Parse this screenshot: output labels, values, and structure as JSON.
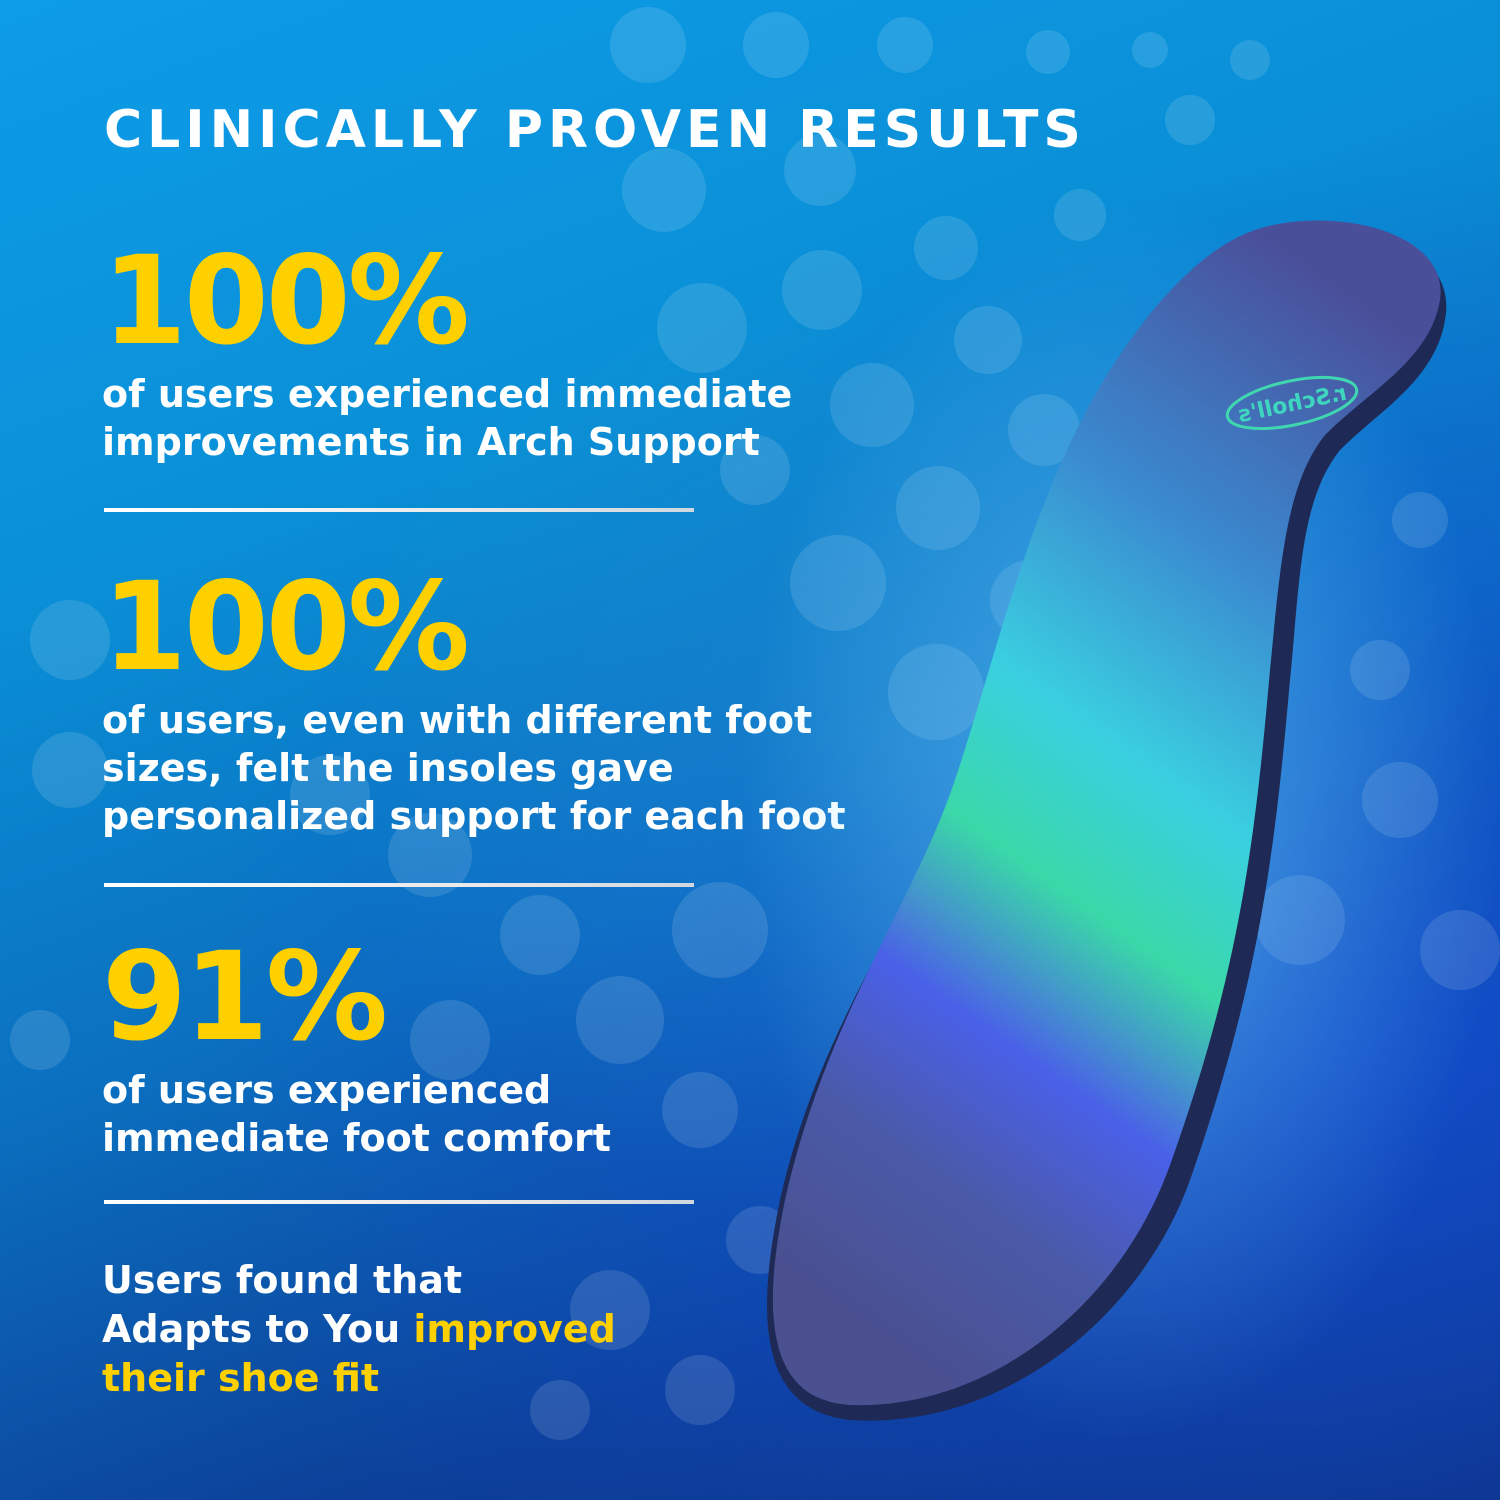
{
  "title": "CLINICALLY PROVEN RESULTS",
  "stats": [
    {
      "value": "100%",
      "description_lines": [
        "of users experienced immediate",
        "improvements in Arch Support"
      ]
    },
    {
      "value": "100%",
      "description_lines": [
        "of users, even with different foot",
        "sizes, felt the insoles gave",
        "personalized support for each foot"
      ]
    },
    {
      "value": "91%",
      "description_lines": [
        "of users experienced",
        "immediate foot comfort"
      ]
    }
  ],
  "closing": {
    "line1": "Users found that",
    "line2_plain": "Adapts to You ",
    "line2_highlight": "improved",
    "line3_highlight": "their shoe fit"
  },
  "product": {
    "logo_text": "r.Scholl's"
  },
  "colors": {
    "accent": "#ffd000",
    "text": "#ffffff",
    "bg_top": "#0d9ce8",
    "bg_bottom": "#0b2a6f"
  }
}
